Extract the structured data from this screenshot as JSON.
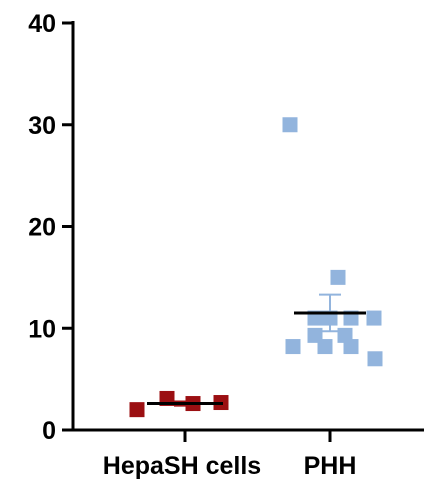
{
  "chart_data": {
    "type": "scatter",
    "categories": [
      "HepaSH cells",
      "PHH"
    ],
    "ylim": [
      0,
      40
    ],
    "yticks": [
      0,
      10,
      20,
      30,
      40
    ],
    "ytick_labels": [
      "0",
      "10",
      "20",
      "30",
      "40"
    ],
    "grid": false,
    "title": "",
    "xlabel": "",
    "ylabel": "",
    "series": [
      {
        "category": "HepaSH cells",
        "color": "#9B0F12",
        "marker": "square",
        "values": [
          2.0,
          3.1,
          2.6,
          2.7
        ],
        "mean": 2.6,
        "sem": 0.2
      },
      {
        "category": "PHH",
        "color": "#92B4DD",
        "marker": "square",
        "values": [
          30.0,
          15.0,
          11.0,
          11.0,
          11.0,
          11.0,
          9.3,
          9.3,
          8.2,
          8.2,
          8.2,
          7.0
        ],
        "mean": 11.5,
        "sem": 1.8
      }
    ]
  }
}
